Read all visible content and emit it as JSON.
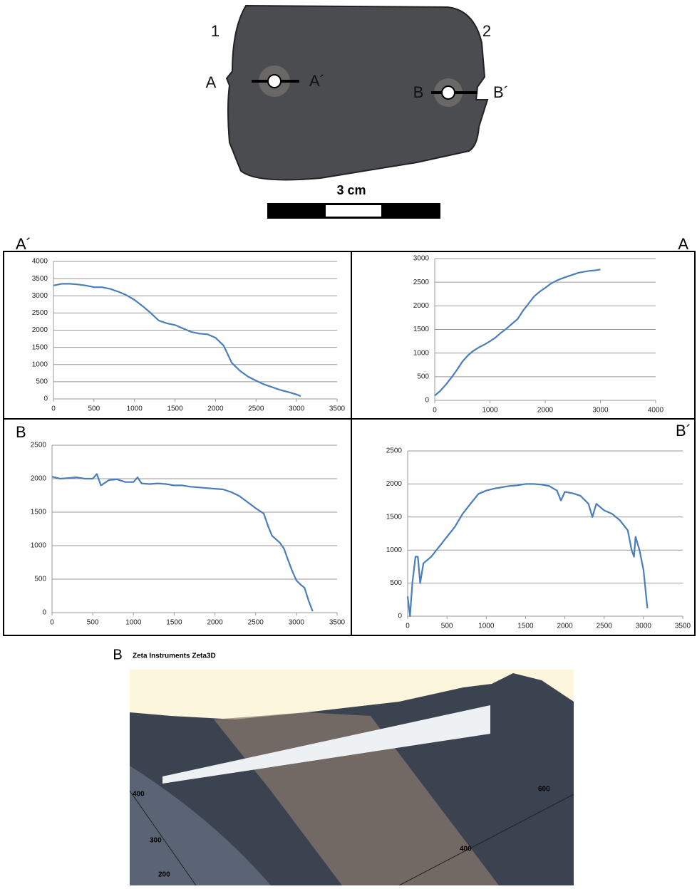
{
  "photo": {
    "corner_labels": [
      "1",
      "2"
    ],
    "section_labels": [
      "A",
      "A´",
      "B",
      "B´"
    ],
    "scale_label": "3 cm"
  },
  "chart_data": [
    {
      "type": "line",
      "corner_label": "A´",
      "x": [
        0,
        100,
        200,
        300,
        400,
        500,
        600,
        700,
        800,
        900,
        1000,
        1100,
        1200,
        1300,
        1400,
        1500,
        1600,
        1700,
        1800,
        1900,
        2000,
        2100,
        2200,
        2300,
        2400,
        2500,
        2600,
        2700,
        2800,
        2900,
        3000,
        3050
      ],
      "series": [
        {
          "color": "#4a7ebb",
          "values": [
            3300,
            3350,
            3350,
            3330,
            3300,
            3250,
            3250,
            3200,
            3120,
            3020,
            2880,
            2700,
            2500,
            2280,
            2200,
            2150,
            2050,
            1950,
            1900,
            1880,
            1780,
            1550,
            1050,
            820,
            650,
            530,
            420,
            340,
            260,
            200,
            130,
            80
          ]
        }
      ],
      "xlim": [
        0,
        3500
      ],
      "xticks": [
        0,
        500,
        1000,
        1500,
        2000,
        2500,
        3000,
        3500
      ],
      "ylim": [
        0,
        4000
      ],
      "yticks": [
        0,
        500,
        1000,
        1500,
        2000,
        2500,
        3000,
        3500,
        4000
      ],
      "grid": true
    },
    {
      "type": "line",
      "corner_label": "A",
      "x": [
        0,
        100,
        200,
        300,
        400,
        500,
        600,
        700,
        800,
        900,
        1000,
        1100,
        1200,
        1300,
        1400,
        1500,
        1600,
        1700,
        1800,
        1900,
        2000,
        2100,
        2200,
        2300,
        2400,
        2500,
        2600,
        2700,
        2800,
        2900,
        3000
      ],
      "series": [
        {
          "color": "#4a7ebb",
          "values": [
            100,
            200,
            330,
            480,
            640,
            820,
            950,
            1050,
            1120,
            1180,
            1250,
            1330,
            1430,
            1520,
            1620,
            1720,
            1900,
            2050,
            2200,
            2300,
            2380,
            2470,
            2530,
            2580,
            2620,
            2660,
            2700,
            2720,
            2740,
            2750,
            2770
          ]
        }
      ],
      "xlim": [
        0,
        4000
      ],
      "xticks": [
        0,
        1000,
        2000,
        3000,
        4000
      ],
      "ylim": [
        0,
        3000
      ],
      "yticks": [
        0,
        500,
        1000,
        1500,
        2000,
        2500,
        3000
      ],
      "grid": true
    },
    {
      "type": "line",
      "corner_label": "B",
      "x": [
        0,
        100,
        200,
        300,
        400,
        500,
        550,
        600,
        700,
        800,
        900,
        1000,
        1050,
        1100,
        1200,
        1300,
        1400,
        1500,
        1600,
        1700,
        1800,
        1900,
        2000,
        2100,
        2200,
        2300,
        2400,
        2500,
        2600,
        2650,
        2700,
        2800,
        2850,
        2900,
        2950,
        3000,
        3050,
        3100,
        3150,
        3200
      ],
      "series": [
        {
          "color": "#4a7ebb",
          "values": [
            2030,
            2000,
            2010,
            2020,
            2000,
            2000,
            2070,
            1900,
            1980,
            1990,
            1950,
            1950,
            2020,
            1930,
            1920,
            1930,
            1920,
            1900,
            1900,
            1880,
            1870,
            1860,
            1850,
            1840,
            1800,
            1740,
            1650,
            1560,
            1480,
            1300,
            1150,
            1040,
            950,
            780,
            620,
            480,
            420,
            370,
            180,
            20
          ]
        }
      ],
      "xlim": [
        0,
        3500
      ],
      "xticks": [
        0,
        500,
        1000,
        1500,
        2000,
        2500,
        3000,
        3500
      ],
      "ylim": [
        0,
        2500
      ],
      "yticks": [
        0,
        500,
        1000,
        1500,
        2000,
        2500
      ],
      "grid": true
    },
    {
      "type": "line",
      "corner_label": "B´",
      "x": [
        0,
        30,
        60,
        100,
        130,
        160,
        200,
        300,
        400,
        500,
        600,
        700,
        800,
        900,
        1000,
        1100,
        1200,
        1300,
        1400,
        1500,
        1600,
        1700,
        1800,
        1900,
        1950,
        2000,
        2100,
        2200,
        2300,
        2350,
        2400,
        2500,
        2600,
        2700,
        2800,
        2850,
        2880,
        2900,
        2950,
        3000,
        3050
      ],
      "series": [
        {
          "color": "#4a7ebb",
          "values": [
            300,
            0,
            500,
            900,
            900,
            500,
            800,
            900,
            1050,
            1200,
            1350,
            1550,
            1700,
            1850,
            1900,
            1930,
            1950,
            1970,
            1980,
            2000,
            2000,
            1990,
            1970,
            1900,
            1750,
            1880,
            1860,
            1820,
            1700,
            1500,
            1700,
            1600,
            1550,
            1450,
            1300,
            1000,
            900,
            1200,
            1000,
            700,
            120
          ]
        }
      ],
      "xlim": [
        0,
        3500
      ],
      "xticks": [
        0,
        500,
        1000,
        1500,
        2000,
        2500,
        3000,
        3500
      ],
      "ylim": [
        0,
        2500
      ],
      "yticks": [
        0,
        500,
        1000,
        1500,
        2000,
        2500
      ],
      "grid": true
    }
  ],
  "render_3d": {
    "panel_label": "B",
    "software": "Zeta Instruments  Zeta3D",
    "axis_labels": [
      "400",
      "300",
      "200",
      "600",
      "400"
    ]
  }
}
